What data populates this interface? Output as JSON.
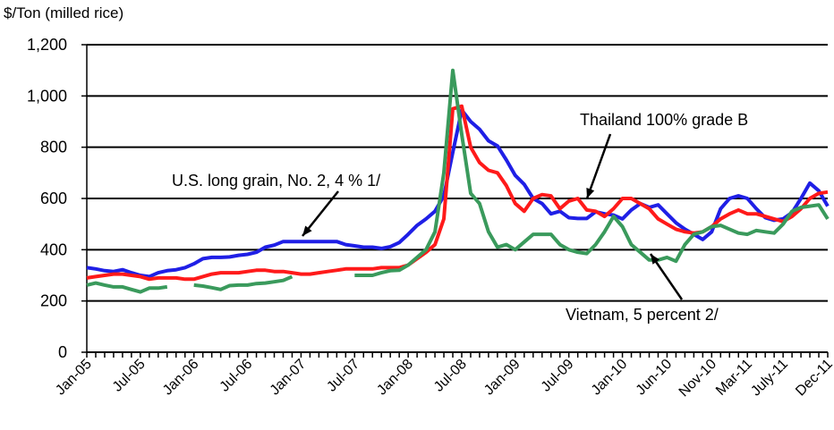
{
  "chart_data": {
    "type": "line",
    "y_axis_label": "$/Ton (milled rice)",
    "annotations": [
      "Thailand 100% grade B",
      "U.S. long grain, No. 2, 4 % 1/",
      "Vietnam, 5 percent 2/"
    ],
    "categories": [
      "Jan-05",
      null,
      null,
      null,
      null,
      null,
      "Jul-05",
      null,
      null,
      null,
      null,
      null,
      "Jan-06",
      null,
      null,
      null,
      null,
      null,
      "Jul-06",
      null,
      null,
      null,
      null,
      null,
      "Jan-07",
      null,
      null,
      null,
      null,
      null,
      "Jul-07",
      null,
      null,
      null,
      null,
      null,
      "Jan-08",
      null,
      null,
      null,
      null,
      null,
      "Jul-08",
      null,
      null,
      null,
      null,
      null,
      "Jan-09",
      null,
      null,
      null,
      null,
      null,
      "Jul-09",
      null,
      null,
      null,
      null,
      null,
      "Jan-10",
      null,
      null,
      null,
      null,
      "Jun-10",
      null,
      null,
      null,
      null,
      "Nov-10",
      null,
      null,
      null,
      "Mar-11",
      null,
      null,
      null,
      "July-11",
      null,
      null,
      null,
      null,
      "Dec-11"
    ],
    "series": [
      {
        "name": "U.S. long grain, No. 2, 4 % 1/",
        "color": "#1f1fe6",
        "values": [
          330,
          325,
          318,
          315,
          322,
          310,
          300,
          295,
          310,
          318,
          322,
          330,
          345,
          365,
          370,
          370,
          372,
          378,
          382,
          390,
          410,
          418,
          432,
          432,
          432,
          432,
          432,
          432,
          432,
          420,
          415,
          410,
          410,
          405,
          412,
          428,
          460,
          495,
          520,
          550,
          610,
          780,
          945,
          900,
          870,
          825,
          805,
          750,
          690,
          655,
          600,
          580,
          540,
          550,
          525,
          522,
          522,
          548,
          540,
          535,
          520,
          555,
          580,
          565,
          575,
          540,
          505,
          480,
          460,
          440,
          470,
          560,
          600,
          610,
          600,
          560,
          525,
          515,
          520,
          545,
          600,
          660,
          630,
          570
        ]
      },
      {
        "name": "Thailand 100% grade B",
        "color": "#ff1a1a",
        "values": [
          290,
          295,
          300,
          305,
          305,
          300,
          295,
          285,
          290,
          290,
          290,
          285,
          285,
          295,
          305,
          310,
          310,
          310,
          315,
          320,
          320,
          315,
          315,
          310,
          305,
          305,
          310,
          315,
          320,
          325,
          325,
          325,
          325,
          330,
          330,
          330,
          340,
          365,
          390,
          420,
          520,
          950,
          960,
          800,
          740,
          710,
          700,
          650,
          580,
          550,
          600,
          615,
          610,
          560,
          590,
          600,
          555,
          550,
          530,
          560,
          600,
          600,
          580,
          560,
          520,
          500,
          480,
          470,
          465,
          470,
          490,
          520,
          540,
          555,
          540,
          540,
          530,
          520,
          510,
          530,
          560,
          600,
          620,
          625
        ]
      },
      {
        "name": "Vietnam, 5 percent 2/",
        "color": "#3a9a5c",
        "values": [
          262,
          270,
          262,
          255,
          255,
          245,
          235,
          250,
          250,
          255,
          null,
          null,
          262,
          258,
          252,
          245,
          260,
          262,
          262,
          268,
          270,
          275,
          280,
          295,
          null,
          null,
          null,
          null,
          null,
          null,
          300,
          300,
          300,
          310,
          318,
          320,
          340,
          370,
          400,
          470,
          700,
          1100,
          850,
          620,
          580,
          470,
          410,
          420,
          400,
          430,
          460,
          460,
          460,
          420,
          400,
          390,
          385,
          420,
          470,
          530,
          490,
          420,
          390,
          360,
          360,
          370,
          355,
          420,
          460,
          470,
          490,
          495,
          480,
          465,
          460,
          475,
          470,
          465,
          500,
          550,
          565,
          570,
          575,
          520
        ]
      }
    ],
    "ylim": [
      0,
      1200
    ],
    "yticks": [
      0,
      200,
      400,
      600,
      800,
      {
        "value": 1000,
        "label": "1,000"
      },
      {
        "value": 1200,
        "label": "1,200"
      }
    ],
    "grid": true
  }
}
